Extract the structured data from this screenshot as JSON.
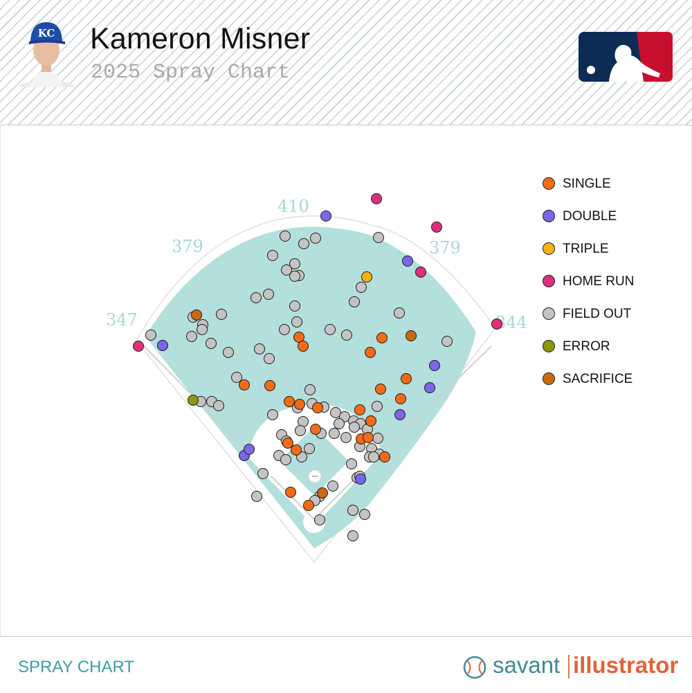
{
  "header": {
    "player_name": "Kameron Misner",
    "subtitle": "2025 Spray Chart",
    "team_logo_icon": "kc-cap-icon",
    "league_logo_icon": "mlb-logo-icon"
  },
  "footer": {
    "title": "SPRAY CHART",
    "brand_first": "savant",
    "brand_second": "illustrator",
    "brand_icon": "baseball-icon"
  },
  "colors": {
    "field": "#b3dfdc",
    "infield": "#ffffff",
    "single": "#f36b17",
    "double": "#7b66e8",
    "triple": "#f4b016",
    "home_run": "#df2f7c",
    "field_out": "#c4c4c4",
    "error": "#8e9610",
    "sacrifice": "#c96a12"
  },
  "chart_data": {
    "type": "scatter",
    "distance_labels": [
      "347",
      "379",
      "410",
      "379",
      "344"
    ],
    "legend": [
      {
        "key": "single",
        "label": "SINGLE"
      },
      {
        "key": "double",
        "label": "DOUBLE"
      },
      {
        "key": "triple",
        "label": "TRIPLE"
      },
      {
        "key": "home_run",
        "label": "HOME RUN"
      },
      {
        "key": "field_out",
        "label": "FIELD OUT"
      },
      {
        "key": "error",
        "label": "ERROR"
      },
      {
        "key": "sacrifice",
        "label": "SACRIFICE"
      }
    ],
    "points": [
      [
        200,
        500,
        "home_run"
      ],
      [
        544,
        287,
        "home_run"
      ],
      [
        631,
        328,
        "home_run"
      ],
      [
        608,
        393,
        "home_run"
      ],
      [
        718,
        468,
        "home_run"
      ],
      [
        471,
        312,
        "double"
      ],
      [
        235,
        499,
        "double"
      ],
      [
        589,
        377,
        "double"
      ],
      [
        628,
        528,
        "double"
      ],
      [
        621,
        560,
        "double"
      ],
      [
        578,
        599,
        "double"
      ],
      [
        353,
        658,
        "double"
      ],
      [
        360,
        649,
        "double"
      ],
      [
        521,
        692,
        "double"
      ],
      [
        530,
        400,
        "triple"
      ],
      [
        279,
        578,
        "error"
      ],
      [
        284,
        455,
        "sacrifice"
      ],
      [
        594,
        485,
        "sacrifice"
      ],
      [
        466,
        712,
        "sacrifice"
      ],
      [
        432,
        487,
        "single"
      ],
      [
        438,
        500,
        "single"
      ],
      [
        552,
        488,
        "single"
      ],
      [
        535,
        509,
        "single"
      ],
      [
        353,
        556,
        "single"
      ],
      [
        390,
        557,
        "single"
      ],
      [
        550,
        562,
        "single"
      ],
      [
        587,
        547,
        "single"
      ],
      [
        579,
        576,
        "single"
      ],
      [
        418,
        580,
        "single"
      ],
      [
        433,
        584,
        "single"
      ],
      [
        459,
        589,
        "single"
      ],
      [
        520,
        592,
        "single"
      ],
      [
        536,
        608,
        "single"
      ],
      [
        456,
        620,
        "single"
      ],
      [
        522,
        634,
        "single"
      ],
      [
        532,
        632,
        "single"
      ],
      [
        416,
        640,
        "single"
      ],
      [
        428,
        650,
        "single"
      ],
      [
        556,
        660,
        "single"
      ],
      [
        420,
        711,
        "single"
      ],
      [
        446,
        730,
        "single"
      ],
      [
        412,
        341,
        "field_out"
      ],
      [
        439,
        352,
        "field_out"
      ],
      [
        456,
        344,
        "field_out"
      ],
      [
        547,
        343,
        "field_out"
      ],
      [
        394,
        369,
        "field_out"
      ],
      [
        426,
        381,
        "field_out"
      ],
      [
        432,
        398,
        "field_out"
      ],
      [
        426,
        399,
        "field_out"
      ],
      [
        414,
        390,
        "field_out"
      ],
      [
        370,
        430,
        "field_out"
      ],
      [
        388,
        425,
        "field_out"
      ],
      [
        522,
        415,
        "field_out"
      ],
      [
        512,
        436,
        "field_out"
      ],
      [
        426,
        442,
        "field_out"
      ],
      [
        577,
        452,
        "field_out"
      ],
      [
        429,
        465,
        "field_out"
      ],
      [
        411,
        476,
        "field_out"
      ],
      [
        477,
        476,
        "field_out"
      ],
      [
        501,
        484,
        "field_out"
      ],
      [
        320,
        454,
        "field_out"
      ],
      [
        279,
        458,
        "field_out"
      ],
      [
        293,
        469,
        "field_out"
      ],
      [
        292,
        476,
        "field_out"
      ],
      [
        218,
        484,
        "field_out"
      ],
      [
        277,
        486,
        "field_out"
      ],
      [
        305,
        496,
        "field_out"
      ],
      [
        330,
        509,
        "field_out"
      ],
      [
        375,
        504,
        "field_out"
      ],
      [
        389,
        518,
        "field_out"
      ],
      [
        646,
        493,
        "field_out"
      ],
      [
        342,
        545,
        "field_out"
      ],
      [
        448,
        563,
        "field_out"
      ],
      [
        545,
        587,
        "field_out"
      ],
      [
        290,
        580,
        "field_out"
      ],
      [
        306,
        580,
        "field_out"
      ],
      [
        316,
        586,
        "field_out"
      ],
      [
        394,
        599,
        "field_out"
      ],
      [
        430,
        589,
        "field_out"
      ],
      [
        451,
        583,
        "field_out"
      ],
      [
        468,
        588,
        "field_out"
      ],
      [
        485,
        596,
        "field_out"
      ],
      [
        498,
        602,
        "field_out"
      ],
      [
        490,
        612,
        "field_out"
      ],
      [
        511,
        608,
        "field_out"
      ],
      [
        521,
        612,
        "field_out"
      ],
      [
        512,
        617,
        "field_out"
      ],
      [
        531,
        620,
        "field_out"
      ],
      [
        438,
        609,
        "field_out"
      ],
      [
        434,
        622,
        "field_out"
      ],
      [
        464,
        626,
        "field_out"
      ],
      [
        483,
        626,
        "field_out"
      ],
      [
        500,
        632,
        "field_out"
      ],
      [
        546,
        633,
        "field_out"
      ],
      [
        407,
        628,
        "field_out"
      ],
      [
        414,
        637,
        "field_out"
      ],
      [
        447,
        648,
        "field_out"
      ],
      [
        520,
        645,
        "field_out"
      ],
      [
        537,
        648,
        "field_out"
      ],
      [
        534,
        660,
        "field_out"
      ],
      [
        548,
        656,
        "field_out"
      ],
      [
        540,
        660,
        "field_out"
      ],
      [
        403,
        658,
        "field_out"
      ],
      [
        413,
        664,
        "field_out"
      ],
      [
        436,
        660,
        "field_out"
      ],
      [
        508,
        670,
        "field_out"
      ],
      [
        380,
        684,
        "field_out"
      ],
      [
        516,
        690,
        "field_out"
      ],
      [
        520,
        688,
        "field_out"
      ],
      [
        481,
        702,
        "field_out"
      ],
      [
        371,
        717,
        "field_out"
      ],
      [
        462,
        717,
        "field_out"
      ],
      [
        455,
        723,
        "field_out"
      ],
      [
        510,
        737,
        "field_out"
      ],
      [
        527,
        743,
        "field_out"
      ],
      [
        462,
        751,
        "field_out"
      ],
      [
        510,
        774,
        "field_out"
      ]
    ]
  }
}
